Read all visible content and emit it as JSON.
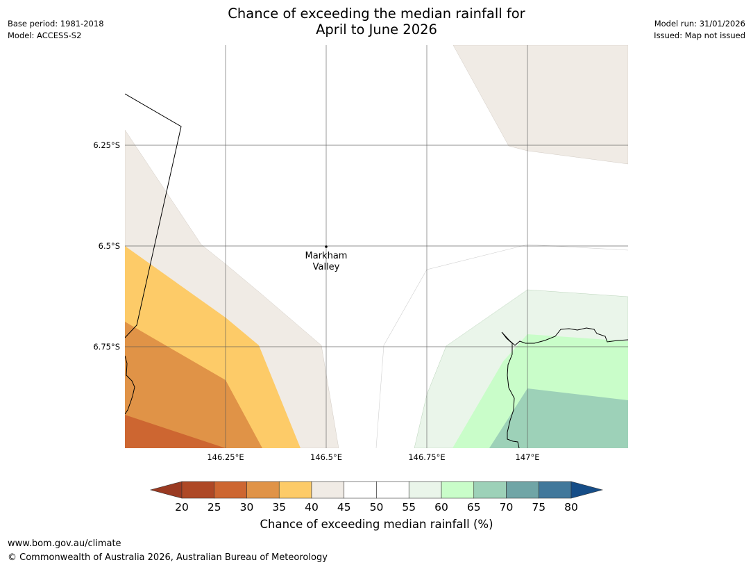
{
  "title": {
    "line1": "Chance of exceeding the median rainfall for",
    "line2": "April to June 2026"
  },
  "meta_left": {
    "base_period": "Base period: 1981-2018",
    "model": "Model: ACCESS-S2"
  },
  "meta_right": {
    "model_run": "Model run: 31/01/2026",
    "issued": "Issued: Map not issued"
  },
  "map": {
    "lat_labels": [
      "6.25°S",
      "6.5°S",
      "6.75°S"
    ],
    "lon_labels": [
      "146.25°E",
      "146.5°E",
      "146.75°E",
      "147°E"
    ],
    "place": {
      "line1": "Markham",
      "line2": "Valley"
    },
    "colors": {
      "c25_30": "#cd6631",
      "c30_35": "#e09347",
      "c35_40": "#fdcb68",
      "c40_45": "#f0ebe5",
      "c55_60": "#eaf5ea",
      "c60_65": "#c9fdc9",
      "c65_70": "#9dd1b8"
    }
  },
  "colorbar": {
    "ticks": [
      "20",
      "25",
      "30",
      "35",
      "40",
      "45",
      "50",
      "55",
      "60",
      "65",
      "70",
      "75",
      "80"
    ],
    "colors": [
      "#9a3a22",
      "#ae4826",
      "#cd6631",
      "#e09347",
      "#fdcb68",
      "#f0ebe5",
      "#ffffff",
      "#ffffff",
      "#eaf5ea",
      "#c9fdc9",
      "#9dd1b8",
      "#70a5a6",
      "#41789b",
      "#164d87"
    ],
    "label": "Chance of exceeding median rainfall (%)"
  },
  "footer": {
    "url": "www.bom.gov.au/climate",
    "copyright": "© Commonwealth of Australia 2026, Australian Bureau of Meteorology"
  }
}
